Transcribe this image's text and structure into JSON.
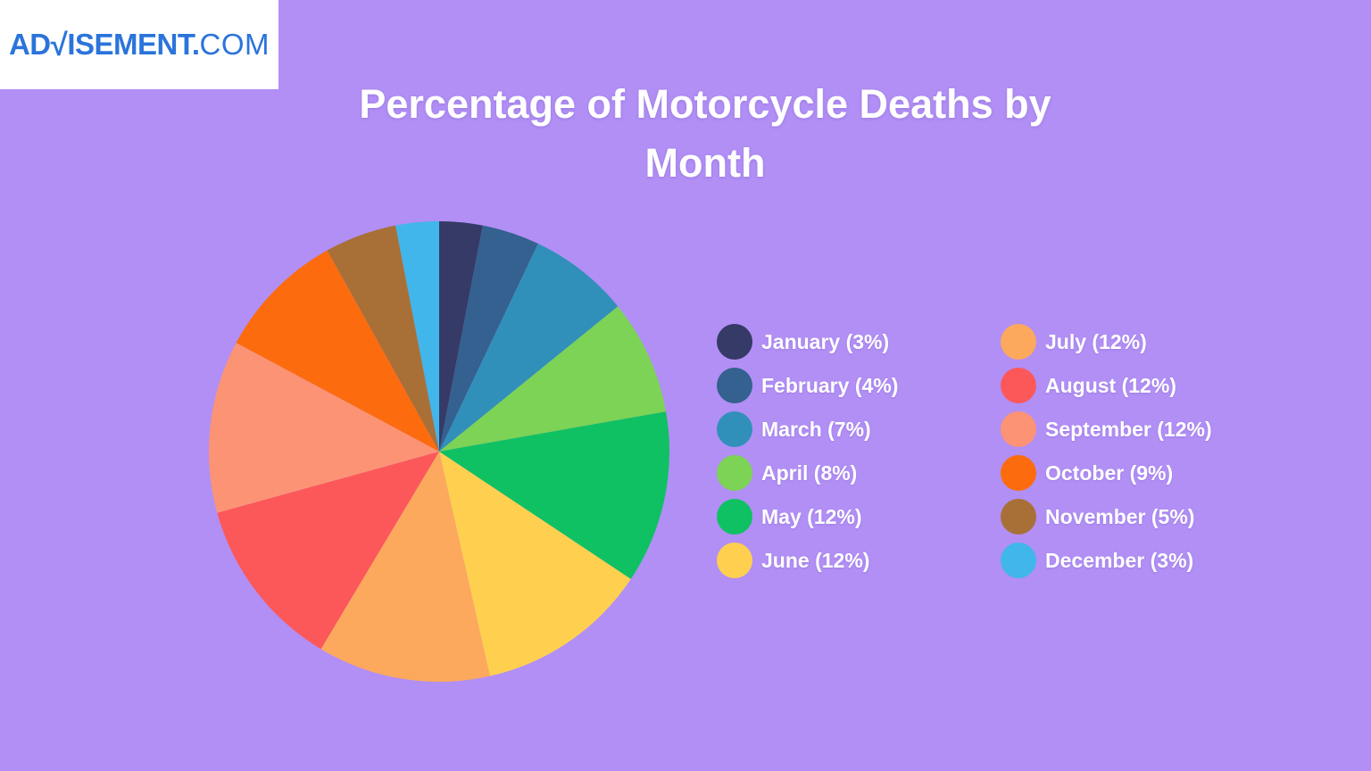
{
  "page": {
    "background_color": "#B18FF5"
  },
  "logo": {
    "bold_prefix": "AD",
    "stylized_v": "√",
    "bold_suffix": "ISEMENT.",
    "suffix_light": "COM",
    "color": "#2B74DB",
    "box_color": "#FFFFFF"
  },
  "title": "Percentage of Motorcycle Deaths by Month",
  "chart_data": {
    "type": "pie",
    "title": "Percentage of Motorcycle Deaths by Month",
    "unit": "%",
    "start_angle_deg": 0,
    "direction": "clockwise",
    "legend_position": "right-two-columns",
    "slices": [
      {
        "label": "January",
        "value": 3,
        "color": "#353A66"
      },
      {
        "label": "February",
        "value": 4,
        "color": "#34618F"
      },
      {
        "label": "March",
        "value": 7,
        "color": "#3190BA"
      },
      {
        "label": "April",
        "value": 8,
        "color": "#7CD355"
      },
      {
        "label": "May",
        "value": 12,
        "color": "#0FC163"
      },
      {
        "label": "June",
        "value": 12,
        "color": "#FFD04F"
      },
      {
        "label": "July",
        "value": 12,
        "color": "#FCA95D"
      },
      {
        "label": "August",
        "value": 12,
        "color": "#FD5859"
      },
      {
        "label": "September",
        "value": 12,
        "color": "#FD9375"
      },
      {
        "label": "October",
        "value": 9,
        "color": "#FC6C0E"
      },
      {
        "label": "November",
        "value": 5,
        "color": "#A87037"
      },
      {
        "label": "December",
        "value": 3,
        "color": "#41B6EB"
      }
    ]
  },
  "legend": {
    "columns": [
      [
        {
          "key": "january",
          "label": "January (3%)",
          "color": "#353A66"
        },
        {
          "key": "february",
          "label": "February (4%)",
          "color": "#34618F"
        },
        {
          "key": "march",
          "label": "March (7%)",
          "color": "#3190BA"
        },
        {
          "key": "april",
          "label": "April (8%)",
          "color": "#7CD355"
        },
        {
          "key": "may",
          "label": "May (12%)",
          "color": "#0FC163"
        },
        {
          "key": "june",
          "label": "June (12%)",
          "color": "#FFD04F"
        }
      ],
      [
        {
          "key": "july",
          "label": "July (12%)",
          "color": "#FCA95D"
        },
        {
          "key": "august",
          "label": "August (12%)",
          "color": "#FD5859"
        },
        {
          "key": "september",
          "label": "September (12%)",
          "color": "#FD9375"
        },
        {
          "key": "october",
          "label": "October (9%)",
          "color": "#FC6C0E"
        },
        {
          "key": "november",
          "label": "November (5%)",
          "color": "#A87037"
        },
        {
          "key": "december",
          "label": "December (3%)",
          "color": "#41B6EB"
        }
      ]
    ]
  }
}
